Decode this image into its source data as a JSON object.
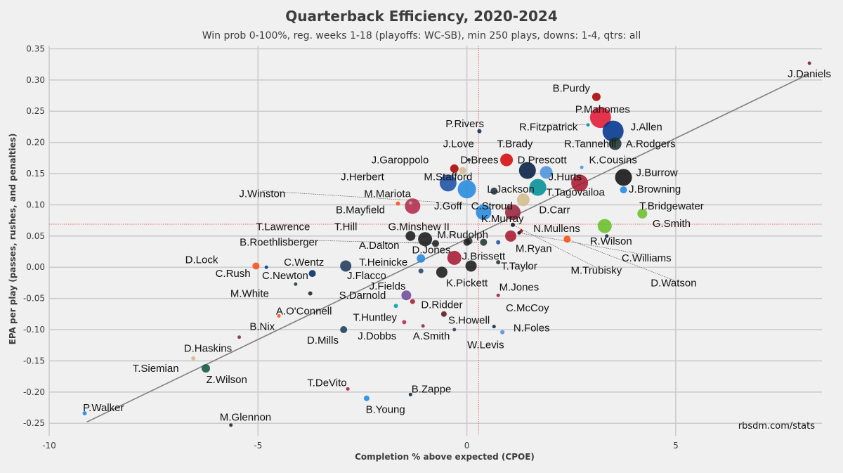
{
  "chart_data": {
    "type": "scatter",
    "title": "Quarterback Efficiency, 2020-2024",
    "subtitle": "Win prob 0-100%, reg. weeks 1-18 (playoffs: WC-SB), min 250 plays, downs: 1-4, qtrs: all",
    "xlabel": "Completion % above expected (CPOE)",
    "ylabel": "EPA per play (passes, rushes, and penalties)",
    "xlim": [
      -10,
      8.5
    ],
    "ylim": [
      -0.27,
      0.355
    ],
    "xticks": [
      -10,
      -5,
      0,
      5
    ],
    "xtick_labels": [
      "-10",
      "-5",
      "0",
      "5"
    ],
    "yticks": [
      0.35,
      0.3,
      0.25,
      0.2,
      0.15,
      0.1,
      0.05,
      0.0,
      -0.05,
      -0.1,
      -0.15,
      -0.2,
      -0.25
    ],
    "ytick_labels": [
      "0.35",
      "0.30",
      "0.25",
      "0.20",
      "0.15",
      "0.10",
      "0.05",
      "0.00",
      "-0.05",
      "-0.10",
      "-0.15",
      "-0.20",
      "-0.25"
    ],
    "grid": true,
    "mean_x": 0.28,
    "mean_y": 0.069,
    "trend_line": [
      [
        -9.1,
        -0.248
      ],
      [
        8.2,
        0.31
      ]
    ],
    "source": "rbsdm.com/stats",
    "points": [
      {
        "name": "J.Daniels",
        "x": 8.2,
        "y": 0.327,
        "r": 2.5,
        "color": "#7a1f2b",
        "lx": 8.2,
        "ly": 0.31,
        "anchor": "middle"
      },
      {
        "name": "B.Purdy",
        "x": 3.1,
        "y": 0.273,
        "r": 6,
        "color": "#aa0000",
        "lx": 2.5,
        "ly": 0.287,
        "anchor": "middle"
      },
      {
        "name": "P.Mahomes",
        "x": 3.2,
        "y": 0.24,
        "r": 15,
        "color": "#e31837",
        "lx": 3.25,
        "ly": 0.253,
        "anchor": "middle"
      },
      {
        "name": "J.Allen",
        "x": 3.5,
        "y": 0.218,
        "r": 15,
        "color": "#00338d",
        "lx": 4.3,
        "ly": 0.225,
        "anchor": "middle"
      },
      {
        "name": "A.Rodgers",
        "x": 3.55,
        "y": 0.198,
        "r": 9,
        "color": "#203731",
        "lx": 4.4,
        "ly": 0.198,
        "anchor": "middle"
      },
      {
        "name": "R.Fitzpatrick",
        "x": 2.9,
        "y": 0.228,
        "r": 2.5,
        "color": "#008e97",
        "lx": 1.95,
        "ly": 0.225,
        "anchor": "middle",
        "leader": true
      },
      {
        "name": "R.Tannehill",
        "x": 2.75,
        "y": 0.16,
        "r": 2.5,
        "color": "#4b92db",
        "lx": 2.95,
        "ly": 0.198,
        "anchor": "middle"
      },
      {
        "name": "K.Cousins",
        "x": 2.7,
        "y": 0.135,
        "r": 12,
        "color": "#a71930",
        "lx": 3.5,
        "ly": 0.172,
        "anchor": "middle"
      },
      {
        "name": "P.Rivers",
        "x": 0.3,
        "y": 0.218,
        "r": 3,
        "color": "#002c5f",
        "lx": -0.05,
        "ly": 0.23,
        "anchor": "middle"
      },
      {
        "name": "J.Love",
        "x": 0.05,
        "y": 0.172,
        "r": 2.5,
        "color": "#203731",
        "lx": -0.2,
        "ly": 0.198,
        "anchor": "middle"
      },
      {
        "name": "T.Brady",
        "x": 0.95,
        "y": 0.172,
        "r": 9,
        "color": "#d50a0a",
        "lx": 1.15,
        "ly": 0.198,
        "anchor": "middle"
      },
      {
        "name": "D.Brees",
        "x": -0.1,
        "y": 0.155,
        "r": 5,
        "color": "#d3bc8d",
        "lx": 0.3,
        "ly": 0.172,
        "anchor": "middle"
      },
      {
        "name": "D.Prescott",
        "x": 1.45,
        "y": 0.155,
        "r": 12,
        "color": "#041e42",
        "lx": 1.8,
        "ly": 0.172,
        "anchor": "middle"
      },
      {
        "name": "J.Garoppolo",
        "x": -0.3,
        "y": 0.158,
        "r": 6,
        "color": "#aa0000",
        "lx": -1.6,
        "ly": 0.172,
        "anchor": "middle"
      },
      {
        "name": "J.Hurts",
        "x": 1.9,
        "y": 0.152,
        "r": 9,
        "color": "#4b92db",
        "lx": 2.35,
        "ly": 0.145,
        "anchor": "middle"
      },
      {
        "name": "J.Burrow",
        "x": 3.75,
        "y": 0.144,
        "r": 12,
        "color": "#111111",
        "lx": 4.55,
        "ly": 0.152,
        "anchor": "middle"
      },
      {
        "name": "J.Browning",
        "x": 3.75,
        "y": 0.124,
        "r": 5,
        "color": "#1e88e5",
        "lx": 4.5,
        "ly": 0.125,
        "anchor": "middle"
      },
      {
        "name": "T.Tagovailoa",
        "x": 1.7,
        "y": 0.128,
        "r": 12,
        "color": "#008e97",
        "lx": 2.6,
        "ly": 0.12,
        "anchor": "middle"
      },
      {
        "name": "J.Herbert",
        "x": -0.45,
        "y": 0.135,
        "r": 12,
        "color": "#1a4fa3",
        "lx": -2.5,
        "ly": 0.145,
        "anchor": "middle"
      },
      {
        "name": "M.Stafford",
        "x": 0.65,
        "y": 0.122,
        "r": 5,
        "color": "#203040",
        "lx": -0.45,
        "ly": 0.145,
        "anchor": "middle"
      },
      {
        "name": "L.Jackson",
        "x": 0.0,
        "y": 0.125,
        "r": 13,
        "color": "#2389dc",
        "lx": 1.05,
        "ly": 0.125,
        "anchor": "middle"
      },
      {
        "name": "J.Winston",
        "x": 0.8,
        "y": 0.098,
        "r": 2.5,
        "color": "#d3bc8d",
        "lx": -4.9,
        "ly": 0.118,
        "anchor": "middle",
        "leader": true
      },
      {
        "name": "M.Mariota",
        "x": -1.35,
        "y": 0.103,
        "r": 2.5,
        "color": "#a5acaf",
        "lx": -1.9,
        "ly": 0.118,
        "anchor": "middle"
      },
      {
        "name": "J.Goff",
        "x": -1.3,
        "y": 0.098,
        "r": 11,
        "color": "#b3294a",
        "lx": -0.45,
        "ly": 0.098,
        "anchor": "middle"
      },
      {
        "name": "C.Stroud",
        "x": 0.4,
        "y": 0.088,
        "r": 11,
        "color": "#2389dc",
        "lx": 0.6,
        "ly": 0.098,
        "anchor": "middle"
      },
      {
        "name": "B.Mayfield",
        "x": -1.65,
        "y": 0.102,
        "r": 3,
        "color": "#fb4f14",
        "lx": -2.55,
        "ly": 0.092,
        "anchor": "middle"
      },
      {
        "name": "D.Carr",
        "x": 1.35,
        "y": 0.108,
        "r": 9,
        "color": "#d3bc8d",
        "lx": 2.1,
        "ly": 0.092,
        "anchor": "middle"
      },
      {
        "name": "K.Murray",
        "x": 1.1,
        "y": 0.088,
        "r": 11,
        "color": "#97233f",
        "lx": 0.85,
        "ly": 0.078,
        "anchor": "middle"
      },
      {
        "name": "T.Bridgewater",
        "x": 4.2,
        "y": 0.086,
        "r": 7,
        "color": "#69be28",
        "lx": 4.9,
        "ly": 0.098,
        "anchor": "middle"
      },
      {
        "name": "G.Smith",
        "x": 3.3,
        "y": 0.066,
        "r": 10,
        "color": "#69be28",
        "lx": 4.9,
        "ly": 0.07,
        "anchor": "middle"
      },
      {
        "name": "R.Wilson",
        "x": 3.35,
        "y": 0.05,
        "r": 2.5,
        "color": "#002244",
        "lx": 3.45,
        "ly": 0.042,
        "anchor": "middle"
      },
      {
        "name": "N.Mullens",
        "x": 1.3,
        "y": 0.058,
        "r": 2.5,
        "color": "#aa0000",
        "lx": 2.15,
        "ly": 0.062,
        "anchor": "middle"
      },
      {
        "name": "C.Williams",
        "x": 1.25,
        "y": 0.055,
        "r": 2.5,
        "color": "#0b162a",
        "lx": 4.3,
        "ly": 0.015,
        "anchor": "middle",
        "leader": true
      },
      {
        "name": "M.Trubisky",
        "x": 1.1,
        "y": 0.068,
        "r": 3,
        "color": "#0b162a",
        "lx": 3.1,
        "ly": -0.005,
        "anchor": "middle",
        "leader": true
      },
      {
        "name": "D.Watson",
        "x": 2.4,
        "y": 0.045,
        "r": 5,
        "color": "#fb4f14",
        "lx": 4.95,
        "ly": -0.025,
        "anchor": "middle",
        "leader": true
      },
      {
        "name": "M.Ryan",
        "x": 1.05,
        "y": 0.05,
        "r": 8,
        "color": "#a71930",
        "lx": 1.6,
        "ly": 0.03,
        "anchor": "middle"
      },
      {
        "name": "T.Lawrence",
        "x": -1.35,
        "y": 0.05,
        "r": 7,
        "color": "#1a1a1a",
        "lx": -4.4,
        "ly": 0.065,
        "anchor": "middle"
      },
      {
        "name": "T.Hill",
        "x": -1.0,
        "y": 0.045,
        "r": 10,
        "color": "#1a1a1a",
        "lx": -2.9,
        "ly": 0.065,
        "anchor": "middle"
      },
      {
        "name": "G.Minshew II",
        "x": 0.05,
        "y": 0.042,
        "r": 5,
        "color": "#333333",
        "lx": -1.15,
        "ly": 0.065,
        "anchor": "middle"
      },
      {
        "name": "M.Rudolph",
        "x": 0.0,
        "y": 0.04,
        "r": 5,
        "color": "#222222",
        "lx": -0.1,
        "ly": 0.052,
        "anchor": "middle"
      },
      {
        "name": "B.Roethlisberger",
        "x": -0.75,
        "y": 0.038,
        "r": 5,
        "color": "#222222",
        "lx": -4.5,
        "ly": 0.04,
        "anchor": "middle",
        "leader": true
      },
      {
        "name": "A.Dalton",
        "x": 0.4,
        "y": 0.04,
        "r": 5,
        "color": "#203731",
        "lx": -2.1,
        "ly": 0.035,
        "anchor": "middle",
        "leader": true
      },
      {
        "name": "D.Jones",
        "x": -0.3,
        "y": 0.015,
        "r": 10,
        "color": "#a71930",
        "lx": -0.85,
        "ly": 0.028,
        "anchor": "middle"
      },
      {
        "name": "J.Brissett",
        "x": 0.75,
        "y": 0.04,
        "r": 3,
        "color": "#1a4fa3",
        "lx": 0.4,
        "ly": 0.018,
        "anchor": "middle"
      },
      {
        "name": "T.Taylor",
        "x": 0.75,
        "y": 0.008,
        "r": 3,
        "color": "#203731",
        "lx": 1.25,
        "ly": 0.002,
        "anchor": "middle"
      },
      {
        "name": "D.Lock",
        "x": -5.05,
        "y": 0.002,
        "r": 5,
        "color": "#fb4f14",
        "lx": -6.35,
        "ly": 0.012,
        "anchor": "middle"
      },
      {
        "name": "C.Rush",
        "x": -4.8,
        "y": 0.0,
        "r": 2.5,
        "color": "#003594",
        "lx": -5.6,
        "ly": -0.01,
        "anchor": "middle"
      },
      {
        "name": "C.Wentz",
        "x": -3.7,
        "y": -0.01,
        "r": 5,
        "color": "#002c5f",
        "lx": -3.9,
        "ly": 0.008,
        "anchor": "middle"
      },
      {
        "name": "T.Heinicke",
        "x": -1.1,
        "y": 0.014,
        "r": 6,
        "color": "#2389dc",
        "lx": -2.0,
        "ly": 0.008,
        "anchor": "middle"
      },
      {
        "name": "C.Newton",
        "x": -2.9,
        "y": 0.002,
        "r": 8,
        "color": "#203c5a",
        "lx": -4.35,
        "ly": -0.013,
        "anchor": "middle"
      },
      {
        "name": "J.Flacco",
        "x": -1.1,
        "y": -0.006,
        "r": 3.5,
        "color": "#2a3f5f",
        "lx": -2.4,
        "ly": -0.013,
        "anchor": "middle"
      },
      {
        "name": "K.Pickett",
        "x": -0.6,
        "y": -0.008,
        "r": 8,
        "color": "#1a1a1a",
        "lx": 0.0,
        "ly": -0.025,
        "anchor": "middle"
      },
      {
        "name": "M.Jones",
        "x": 0.1,
        "y": 0.002,
        "r": 8,
        "color": "#1a1a1a",
        "lx": 1.25,
        "ly": -0.032,
        "anchor": "middle"
      },
      {
        "name": "J.Fields",
        "x": -1.45,
        "y": -0.045,
        "r": 7,
        "color": "#6f4c9b",
        "lx": -1.9,
        "ly": -0.03,
        "anchor": "middle"
      },
      {
        "name": "M.White",
        "x": -4.1,
        "y": -0.027,
        "r": 2.5,
        "color": "#203731",
        "lx": -5.2,
        "ly": -0.042,
        "anchor": "middle"
      },
      {
        "name": "S.Darnold",
        "x": -3.75,
        "y": -0.042,
        "r": 3,
        "color": "#222222",
        "lx": -2.5,
        "ly": -0.045,
        "anchor": "middle"
      },
      {
        "name": "D.Ridder",
        "x": -1.3,
        "y": -0.055,
        "r": 3.5,
        "color": "#a71930",
        "lx": -0.6,
        "ly": -0.06,
        "anchor": "middle"
      },
      {
        "name": "C.McCoy",
        "x": 0.75,
        "y": -0.045,
        "r": 2.5,
        "color": "#a71930",
        "lx": 1.45,
        "ly": -0.065,
        "anchor": "middle"
      },
      {
        "name": "A.O'Connell",
        "x": -1.7,
        "y": -0.062,
        "r": 3,
        "color": "#00a0b0",
        "lx": -3.9,
        "ly": -0.07,
        "anchor": "middle"
      },
      {
        "name": "B.Nix",
        "x": -4.5,
        "y": -0.078,
        "r": 2.5,
        "color": "#fb4f14",
        "lx": -4.9,
        "ly": -0.095,
        "anchor": "middle"
      },
      {
        "name": "T.Huntley",
        "x": -1.5,
        "y": -0.088,
        "r": 3,
        "color": "#b3294a",
        "lx": -2.2,
        "ly": -0.08,
        "anchor": "middle"
      },
      {
        "name": "S.Howell",
        "x": -0.55,
        "y": -0.075,
        "r": 4,
        "color": "#5a1a1a",
        "lx": 0.05,
        "ly": -0.085,
        "anchor": "middle"
      },
      {
        "name": "D.Mills",
        "x": -2.95,
        "y": -0.1,
        "r": 5,
        "color": "#203c5a",
        "lx": -3.45,
        "ly": -0.117,
        "anchor": "middle"
      },
      {
        "name": "J.Dobbs",
        "x": -1.05,
        "y": -0.094,
        "r": 2.5,
        "color": "#8a2a2a",
        "lx": -2.15,
        "ly": -0.11,
        "anchor": "middle"
      },
      {
        "name": "A.Smith",
        "x": -0.3,
        "y": -0.1,
        "r": 2.5,
        "color": "#2a3f5f",
        "lx": -0.85,
        "ly": -0.11,
        "anchor": "middle"
      },
      {
        "name": "N.Foles",
        "x": 0.65,
        "y": -0.095,
        "r": 2.5,
        "color": "#002244",
        "lx": 1.55,
        "ly": -0.097,
        "anchor": "middle"
      },
      {
        "name": "W.Levis",
        "x": 0.85,
        "y": -0.104,
        "r": 3,
        "color": "#4b92db",
        "lx": 0.45,
        "ly": -0.124,
        "anchor": "middle"
      },
      {
        "name": "D.Haskins",
        "x": -5.45,
        "y": -0.112,
        "r": 2.5,
        "color": "#773141",
        "lx": -6.2,
        "ly": -0.13,
        "anchor": "middle"
      },
      {
        "name": "T.Siemian",
        "x": -6.55,
        "y": -0.146,
        "r": 3,
        "color": "#d3bc8d",
        "lx": -7.45,
        "ly": -0.162,
        "anchor": "middle"
      },
      {
        "name": "Z.Wilson",
        "x": -6.25,
        "y": -0.162,
        "r": 6,
        "color": "#125740",
        "lx": -5.75,
        "ly": -0.18,
        "anchor": "middle"
      },
      {
        "name": "T.DeVito",
        "x": -2.85,
        "y": -0.195,
        "r": 2.5,
        "color": "#a71930",
        "lx": -3.35,
        "ly": -0.185,
        "anchor": "middle"
      },
      {
        "name": "B.Zappe",
        "x": -1.35,
        "y": -0.204,
        "r": 2.5,
        "color": "#002244",
        "lx": -0.85,
        "ly": -0.195,
        "anchor": "middle"
      },
      {
        "name": "B.Young",
        "x": -2.4,
        "y": -0.21,
        "r": 4,
        "color": "#1e88e5",
        "lx": -1.95,
        "ly": -0.228,
        "anchor": "middle"
      },
      {
        "name": "P.Walker",
        "x": -9.15,
        "y": -0.234,
        "r": 3,
        "color": "#1e88e5",
        "lx": -8.7,
        "ly": -0.225,
        "anchor": "middle"
      },
      {
        "name": "M.Glennon",
        "x": -5.65,
        "y": -0.253,
        "r": 2.5,
        "color": "#222222",
        "lx": -5.3,
        "ly": -0.24,
        "anchor": "middle"
      }
    ]
  }
}
